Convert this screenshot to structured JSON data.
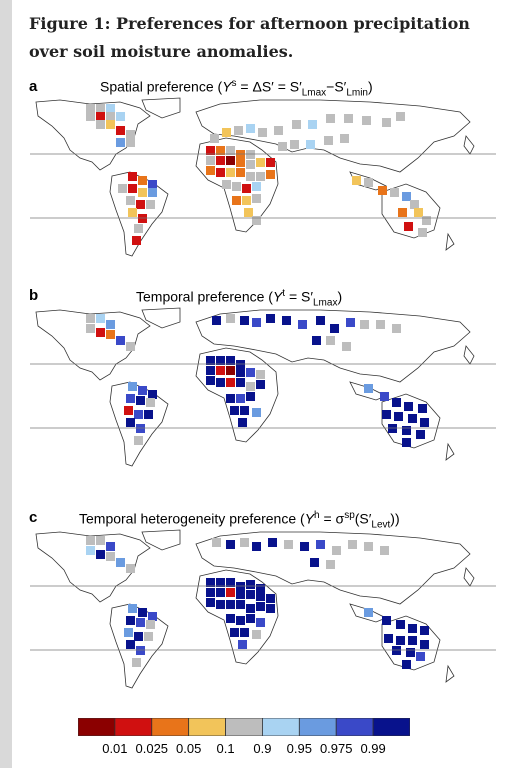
{
  "caption": "Figure 1: Preferences for afternoon precipitation over soil moisture anomalies.",
  "panels": [
    {
      "letter": "a",
      "title_main": "Spatial preference (",
      "title_sym": "Y",
      "title_sup": "s",
      "title_rest": " = ΔS′ = S′",
      "sub1": "Lmax",
      "dash": "−S′",
      "sub2": "Lmin",
      "close": ")"
    },
    {
      "letter": "b",
      "title_main": "Temporal preference (",
      "title_sym": "Y",
      "title_sup": "t",
      "title_rest": " = S′",
      "sub1": "Lmax",
      "close": ")"
    },
    {
      "letter": "c",
      "title_main": "Temporal heterogeneity preference (",
      "title_sym": "Y",
      "title_sup": "h",
      "title_rest": " = σ",
      "sup2": "sp",
      "paren": "(S′",
      "sub1": "Levt",
      "close": "))"
    }
  ],
  "colorbar": {
    "colors": [
      "#8b0000",
      "#d01010",
      "#e8741a",
      "#f2c45a",
      "#bdbdbd",
      "#a9d3f2",
      "#6a9be0",
      "#3a49c8",
      "#08128c"
    ],
    "labels": [
      "0.01",
      "0.025",
      "0.05",
      "0.1",
      "0.9",
      "0.95",
      "0.975",
      "0.99"
    ]
  }
}
